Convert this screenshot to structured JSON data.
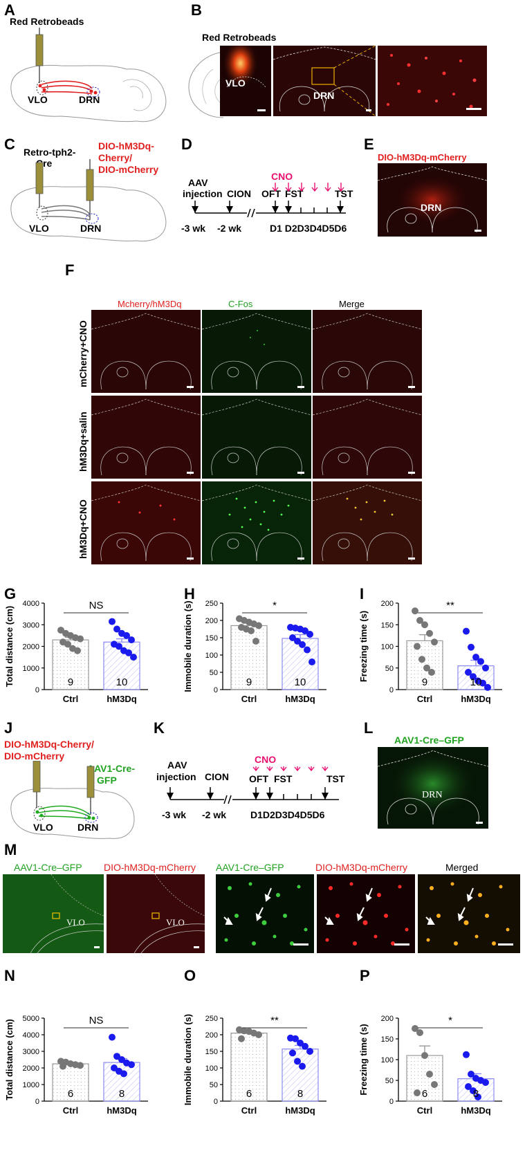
{
  "panel_letters": {
    "A": "A",
    "B": "B",
    "C": "C",
    "D": "D",
    "E": "E",
    "F": "F",
    "G": "G",
    "H": "H",
    "I": "I",
    "J": "J",
    "K": "K",
    "L": "L",
    "M": "M",
    "N": "N",
    "O": "O",
    "P": "P"
  },
  "panelA": {
    "title": "Red Retrobeads",
    "vlo": "VLO",
    "drn": "DRN"
  },
  "panelB": {
    "title": "Red Retrobeads",
    "vlo": "VLO",
    "drn": "DRN"
  },
  "panelC": {
    "virus1_line1": "Retro-tph2-",
    "virus1_line2": "Cre",
    "virus2_line1": "DIO-hM3Dq-",
    "virus2_line2": "Cherry/",
    "virus2_line3": "DIO-mCherry",
    "vlo": "VLO",
    "drn": "DRN"
  },
  "timeline1": {
    "aav_line1": "AAV",
    "aav_line2": "injection",
    "cion": "CION",
    "cno": "CNO",
    "oft": "OFT",
    "fst": "FST",
    "tst": "TST",
    "wk3": "-3 wk",
    "wk2": "-2 wk",
    "days": "D1 D2D3D4D5D6"
  },
  "panelE": {
    "title": "DIO-hM3Dq-mCherry",
    "drn": "DRN"
  },
  "panelF": {
    "col1": "Mcherry/hM3Dq",
    "col2": "C-Fos",
    "col3": "Merge",
    "row1": "mCherry+CNO",
    "row2": "hM3Dq+salin",
    "row3": "hM3Dq+CNO"
  },
  "panelJ": {
    "virus1_line1": "DIO-hM3Dq-Cherry/",
    "virus1_line2": "DIO-mCherry",
    "virus2_line1": "AAV1-Cre-",
    "virus2_line2": "GFP",
    "vlo": "VLO",
    "drn": "DRN"
  },
  "timeline2": {
    "aav_line1": "AAV",
    "aav_line2": "injection",
    "cion": "CION",
    "cno": "CNO",
    "oft": "OFT",
    "fst": "FST",
    "tst": "TST",
    "wk3": "-3 wk",
    "wk2": "-2 wk",
    "days": "D1D2D3D4D5D6"
  },
  "panelL": {
    "title": "AAV1-Cre–GFP",
    "drn": "DRN"
  },
  "panelM": {
    "left_green": "AAV1-Cre–GFP",
    "left_red": "DIO-hM3Dq-mCherry",
    "right_green": "AAV1-Cre–GFP",
    "right_red": "DIO-hM3Dq-mCherry",
    "right_merged": "Merged",
    "vlo": "VLO"
  },
  "colors": {
    "ctrl_point": "#777777",
    "hm3dq_point": "#1a1aee",
    "hm3dq_bar_edge": "#8a8af0",
    "ctrl_bar_edge": "#999999",
    "red_label": "#e0201e",
    "green_label": "#1fa21f",
    "cno": "#e8106e"
  },
  "chart_data": [
    {
      "id": "G",
      "type": "bar",
      "categories": [
        "Ctrl",
        "hM3Dq"
      ],
      "ylabel": "Total distance (cm)",
      "ylim": [
        0,
        4000
      ],
      "yticks": [
        0,
        1000,
        2000,
        3000,
        4000
      ],
      "sig": "NS",
      "n": [
        "9",
        "10"
      ],
      "means": [
        2300,
        2200
      ],
      "sem": [
        120,
        150
      ],
      "points": [
        [
          2750,
          2600,
          2500,
          2400,
          2350,
          2200,
          2100,
          1900,
          1800
        ],
        [
          3150,
          2800,
          2600,
          2500,
          2300,
          2100,
          2000,
          1800,
          1700,
          1500
        ]
      ]
    },
    {
      "id": "H",
      "type": "bar",
      "categories": [
        "Ctrl",
        "hM3Dq"
      ],
      "ylabel": "Immobile duration (s)",
      "ylim": [
        0,
        250
      ],
      "yticks": [
        0,
        50,
        100,
        150,
        200,
        250
      ],
      "sig": "*",
      "n": [
        "9",
        "10"
      ],
      "means": [
        185,
        148
      ],
      "sem": [
        8,
        11
      ],
      "points": [
        [
          205,
          200,
          195,
          190,
          185,
          180,
          175,
          170,
          140
        ],
        [
          180,
          178,
          175,
          170,
          160,
          150,
          140,
          130,
          115,
          80
        ]
      ]
    },
    {
      "id": "I",
      "type": "bar",
      "categories": [
        "Ctrl",
        "hM3Dq"
      ],
      "ylabel": "Freezing time (s)",
      "ylim": [
        0,
        200
      ],
      "yticks": [
        0,
        50,
        100,
        150,
        200
      ],
      "sig": "**",
      "n": [
        "9",
        "10"
      ],
      "means": [
        113,
        55
      ],
      "sem": [
        14,
        13
      ],
      "points": [
        [
          182,
          160,
          150,
          130,
          110,
          100,
          70,
          50,
          40
        ],
        [
          135,
          98,
          75,
          65,
          50,
          40,
          30,
          20,
          15,
          5
        ]
      ]
    },
    {
      "id": "N",
      "type": "bar",
      "categories": [
        "Ctrl",
        "hM3Dq"
      ],
      "ylabel": "Total distance (cm)",
      "ylim": [
        0,
        5000
      ],
      "yticks": [
        0,
        1000,
        2000,
        3000,
        4000,
        5000
      ],
      "sig": "NS",
      "n": [
        "6",
        "8"
      ],
      "means": [
        2250,
        2330
      ],
      "sem": [
        70,
        230
      ],
      "points": [
        [
          2400,
          2350,
          2250,
          2200,
          2150,
          2100
        ],
        [
          3850,
          2700,
          2500,
          2300,
          2200,
          2000,
          1800,
          1650
        ]
      ]
    },
    {
      "id": "O",
      "type": "bar",
      "categories": [
        "Ctrl",
        "hM3Dq"
      ],
      "ylabel": "Immobile duration (s)",
      "ylim": [
        0,
        250
      ],
      "yticks": [
        0,
        50,
        100,
        150,
        200,
        250
      ],
      "sig": "**",
      "n": [
        "6",
        "8"
      ],
      "means": [
        205,
        157
      ],
      "sem": [
        6,
        11
      ],
      "points": [
        [
          215,
          212,
          210,
          205,
          200,
          188
        ],
        [
          190,
          188,
          175,
          165,
          150,
          145,
          120,
          105
        ]
      ]
    },
    {
      "id": "P",
      "type": "bar",
      "categories": [
        "Ctrl",
        "hM3Dq"
      ],
      "ylabel": "Freezing time (s)",
      "ylim": [
        0,
        200
      ],
      "yticks": [
        0,
        50,
        100,
        150,
        200
      ],
      "sig": "*",
      "n": [
        "6",
        "8"
      ],
      "means": [
        110,
        54
      ],
      "sem": [
        23,
        12
      ],
      "points": [
        [
          175,
          165,
          110,
          65,
          40,
          20
        ],
        [
          112,
          65,
          55,
          50,
          45,
          35,
          25,
          10
        ]
      ]
    }
  ]
}
